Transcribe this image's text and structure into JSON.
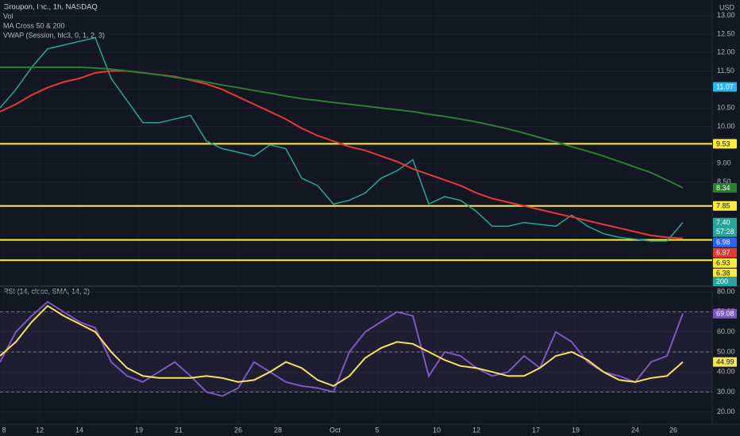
{
  "chart_data": [
    {
      "type": "line",
      "title": "Groupon, Inc., 1h, NASDAQ",
      "indicators": [
        "Vol",
        "MA Cross 50 & 200",
        "VWAP (Session, hlc3, 0, 1, 2, 3)"
      ],
      "currency": "USD",
      "x": [
        0,
        1,
        2,
        3,
        4,
        5,
        6,
        7,
        8,
        9,
        10,
        11,
        12,
        13,
        14,
        15,
        16,
        17,
        18,
        19,
        20,
        21,
        22,
        23,
        24,
        25,
        26,
        27,
        28,
        29,
        30,
        31,
        32,
        33,
        34,
        35,
        36,
        37,
        38,
        39,
        40,
        41,
        42,
        43
      ],
      "xlim": [
        0,
        43
      ],
      "xticks": [
        {
          "value": 0.25,
          "label": "8"
        },
        {
          "value": 2.5,
          "label": "12"
        },
        {
          "value": 5,
          "label": "14"
        },
        {
          "value": 8.75,
          "label": "19"
        },
        {
          "value": 11.25,
          "label": "21"
        },
        {
          "value": 15,
          "label": "26"
        },
        {
          "value": 17.5,
          "label": "28"
        },
        {
          "value": 21.1,
          "label": "Oct"
        },
        {
          "value": 23.75,
          "label": "5"
        },
        {
          "value": 27.5,
          "label": "10"
        },
        {
          "value": 30,
          "label": "12"
        },
        {
          "value": 33.75,
          "label": "17"
        },
        {
          "value": 36.25,
          "label": "19"
        },
        {
          "value": 40,
          "label": "24"
        },
        {
          "value": 42.4,
          "label": "26"
        }
      ],
      "ylim": [
        5.7,
        13.42
      ],
      "yticks": [
        {
          "value": 13,
          "label": "13.00"
        },
        {
          "value": 12.5,
          "label": "12.50"
        },
        {
          "value": 12,
          "label": "12.00"
        },
        {
          "value": 11.5,
          "label": "11.50"
        },
        {
          "value": 11,
          "label": "11.00"
        },
        {
          "value": 10.5,
          "label": "10.50"
        },
        {
          "value": 10,
          "label": "10.00"
        },
        {
          "value": 9.5,
          "label": "9.50"
        },
        {
          "value": 9,
          "label": "9.00"
        },
        {
          "value": 8.5,
          "label": "8.50"
        }
      ],
      "grid": true,
      "series": [
        {
          "color": "#26a69a",
          "values": [
            10.5,
            11.0,
            11.6,
            12.1,
            12.2,
            12.3,
            12.4,
            11.3,
            10.7,
            10.1,
            10.1,
            10.2,
            10.3,
            9.6,
            9.4,
            9.3,
            9.2,
            9.5,
            9.4,
            8.6,
            8.4,
            7.9,
            8.0,
            8.2,
            8.6,
            8.8,
            9.1,
            7.9,
            8.1,
            8.0,
            7.7,
            7.3,
            7.3,
            7.4,
            7.35,
            7.3,
            7.6,
            7.3,
            7.1,
            7.0,
            6.95,
            6.9,
            6.9,
            7.4
          ]
        },
        {
          "color": "#e53935",
          "values": [
            10.4,
            10.6,
            10.85,
            11.05,
            11.2,
            11.3,
            11.45,
            11.5,
            11.5,
            11.45,
            11.4,
            11.35,
            11.25,
            11.15,
            11.0,
            10.8,
            10.6,
            10.4,
            10.2,
            9.95,
            9.75,
            9.6,
            9.45,
            9.35,
            9.2,
            9.05,
            8.85,
            8.7,
            8.55,
            8.4,
            8.2,
            8.05,
            7.95,
            7.85,
            7.75,
            7.65,
            7.55,
            7.45,
            7.35,
            7.25,
            7.15,
            7.05,
            7.0,
            6.97
          ]
        },
        {
          "color": "#2e7d32",
          "values": [
            11.6,
            11.6,
            11.6,
            11.6,
            11.6,
            11.6,
            11.58,
            11.55,
            11.5,
            11.45,
            11.4,
            11.33,
            11.27,
            11.2,
            11.12,
            11.05,
            10.97,
            10.9,
            10.82,
            10.75,
            10.7,
            10.65,
            10.6,
            10.55,
            10.5,
            10.45,
            10.4,
            10.33,
            10.27,
            10.2,
            10.12,
            10.03,
            9.93,
            9.82,
            9.7,
            9.58,
            9.45,
            9.33,
            9.2,
            9.05,
            8.9,
            8.75,
            8.55,
            8.34
          ]
        }
      ],
      "hlines": [
        9.53,
        7.85,
        6.93,
        6.38
      ],
      "hline_color": "#ffeb3b",
      "price_labels": [
        {
          "value": 11.07,
          "color": "#29b6f6"
        },
        {
          "value": 9.53,
          "color": "#ffeb3b"
        },
        {
          "value": 8.34,
          "color": "#2e7d32"
        },
        {
          "value": 7.85,
          "color": "#ffeb3b"
        },
        {
          "value": 7.4,
          "label": "7.40",
          "countdown": "57:28",
          "color": "#26a69a"
        },
        {
          "value": 6.98,
          "color": "#2962ff"
        },
        {
          "value": 6.97,
          "color": "#e53935"
        },
        {
          "value": 6.93,
          "color": "#ffeb3b"
        },
        {
          "value": 6.38,
          "color": "#ffeb3b"
        }
      ],
      "volume_label": 200
    },
    {
      "type": "line",
      "title": "RSI (14, close, SMA, 14, 2)",
      "x": [
        0,
        1,
        2,
        3,
        4,
        5,
        6,
        7,
        8,
        9,
        10,
        11,
        12,
        13,
        14,
        15,
        16,
        17,
        18,
        19,
        20,
        21,
        22,
        23,
        24,
        25,
        26,
        27,
        28,
        29,
        30,
        31,
        32,
        33,
        34,
        35,
        36,
        37,
        38,
        39,
        40,
        41,
        42,
        43
      ],
      "xlim": [
        0,
        43
      ],
      "ylim": [
        14,
        82.4
      ],
      "yticks": [
        {
          "value": 80,
          "label": "80.00"
        },
        {
          "value": 70,
          "label": "70.00"
        },
        {
          "value": 60,
          "label": "60.00"
        },
        {
          "value": 50,
          "label": "50.00"
        },
        {
          "value": 40,
          "label": "40.00"
        },
        {
          "value": 30,
          "label": "30.00"
        },
        {
          "value": 20,
          "label": "20.00"
        }
      ],
      "levels": [
        70,
        50,
        30
      ],
      "series": [
        {
          "color": "#7e57c2",
          "values": [
            45,
            60,
            68,
            75,
            70,
            65,
            62,
            45,
            38,
            35,
            40,
            45,
            38,
            30,
            28,
            32,
            45,
            40,
            35,
            33,
            32,
            30,
            50,
            60,
            65,
            70,
            68,
            38,
            50,
            48,
            42,
            38,
            40,
            48,
            42,
            60,
            55,
            45,
            40,
            38,
            35,
            45,
            48,
            69.08
          ]
        },
        {
          "color": "#f5e35b",
          "values": [
            48,
            55,
            65,
            73,
            68,
            64,
            60,
            50,
            42,
            38,
            37,
            37,
            37,
            38,
            37,
            35,
            36,
            40,
            45,
            42,
            36,
            33,
            38,
            47,
            52,
            55,
            54,
            50,
            46,
            43,
            42,
            40,
            38,
            38,
            42,
            48,
            50,
            46,
            40,
            36,
            35,
            37,
            38,
            44.99
          ]
        }
      ]
    }
  ]
}
